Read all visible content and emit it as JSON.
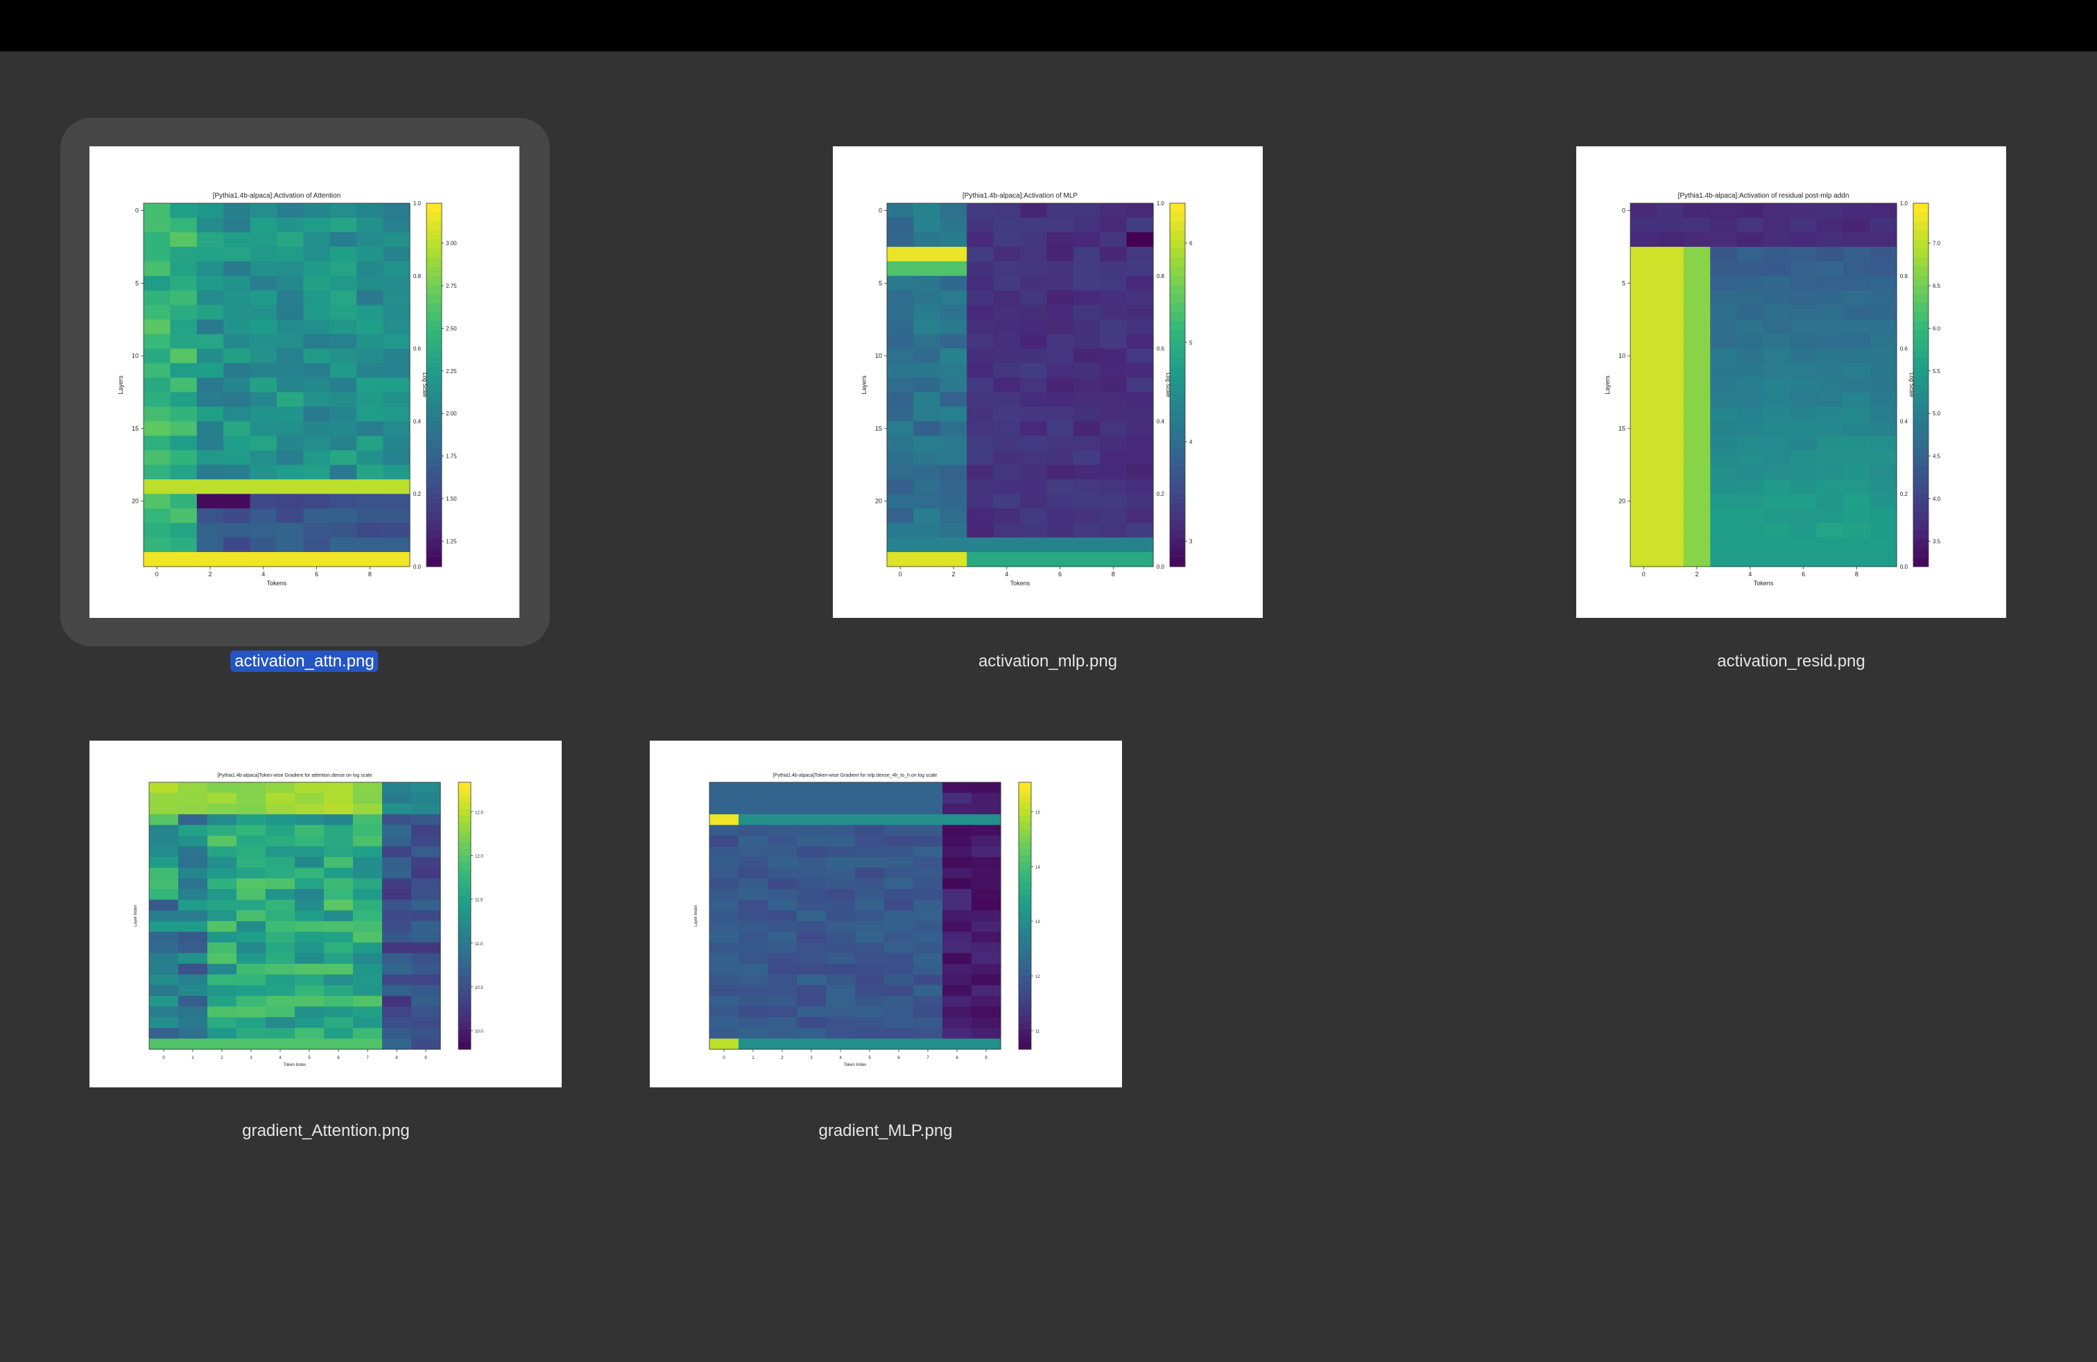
{
  "window": {
    "titlebar_color": "#000000",
    "background_color": "#333333",
    "selection_color": "#2455c3"
  },
  "files": [
    {
      "filename": "activation_attn.png",
      "selected": true,
      "kind": "heatmap-thumbnail",
      "chart": {
        "title": "[Pythia1.4b-alpaca]:Activation of Attention",
        "xlabel": "Tokens",
        "ylabel": "Layers",
        "x_ticks": [
          "0",
          "2",
          "4",
          "6",
          "8"
        ],
        "y_ticks": [
          "0",
          "5",
          "10",
          "15",
          "20"
        ],
        "colorbar_ticks": [
          "3.00",
          "2.75",
          "2.50",
          "2.25",
          "2.00",
          "1.75",
          "1.50",
          "1.25"
        ],
        "colorbar_label": "Log Scale",
        "secondary_ticks": [
          "1.0",
          "0.8",
          "0.6",
          "0.4",
          "0.2",
          "0.0"
        ]
      }
    },
    {
      "filename": "activation_mlp.png",
      "selected": false,
      "kind": "heatmap-thumbnail",
      "chart": {
        "title": "[Pythia1.4b-alpaca]:Activation of MLP",
        "xlabel": "Tokens",
        "ylabel": "Layers",
        "x_ticks": [
          "0",
          "2",
          "4",
          "6",
          "8"
        ],
        "y_ticks": [
          "0",
          "5",
          "10",
          "15",
          "20"
        ],
        "colorbar_ticks": [
          "6",
          "5",
          "4",
          "3"
        ],
        "colorbar_label": "Log Scale",
        "secondary_ticks": [
          "1.0",
          "0.8",
          "0.6",
          "0.4",
          "0.2",
          "0.0"
        ]
      }
    },
    {
      "filename": "activation_resid.png",
      "selected": false,
      "kind": "heatmap-thumbnail",
      "chart": {
        "title": "[Pythia1.4b-alpaca]:Activation of residual post-mlp addn",
        "xlabel": "Tokens",
        "ylabel": "Layers",
        "x_ticks": [
          "0",
          "2",
          "4",
          "6",
          "8"
        ],
        "y_ticks": [
          "0",
          "5",
          "10",
          "15",
          "20"
        ],
        "colorbar_ticks": [
          "7.0",
          "6.5",
          "6.0",
          "5.5",
          "5.0",
          "4.5",
          "4.0",
          "3.5"
        ],
        "colorbar_label": "Log Scale",
        "secondary_ticks": [
          "1.0",
          "0.8",
          "0.6",
          "0.4",
          "0.2",
          "0.0"
        ]
      }
    },
    {
      "filename": "gradient_Attention.png",
      "selected": false,
      "kind": "heatmap-thumbnail",
      "chart": {
        "title": "[Pythia1.4b-alpaca]Token-wise Gradient for attention.dense on log scale",
        "xlabel": "Token Index",
        "ylabel": "Layer Index",
        "x_ticks": [
          "0",
          "1",
          "2",
          "3",
          "4",
          "5",
          "6",
          "7",
          "8",
          "9"
        ],
        "y_ticks": [],
        "colorbar_ticks": [
          "12.5",
          "12.0",
          "11.5",
          "11.0",
          "10.5",
          "10.0"
        ],
        "colorbar_label": "",
        "secondary_ticks": []
      }
    },
    {
      "filename": "gradient_MLP.png",
      "selected": false,
      "kind": "heatmap-thumbnail",
      "chart": {
        "title": "[Pythia1.4b-alpaca]Token-wise Gradient for mlp.dense_4h_to_h on log scale",
        "xlabel": "Token Index",
        "ylabel": "Layer Index",
        "x_ticks": [
          "0",
          "1",
          "2",
          "3",
          "4",
          "5",
          "6",
          "7",
          "8",
          "9"
        ],
        "y_ticks": [],
        "colorbar_ticks": [
          "15",
          "14",
          "13",
          "12",
          "11"
        ],
        "colorbar_label": "",
        "secondary_ticks": []
      }
    }
  ]
}
